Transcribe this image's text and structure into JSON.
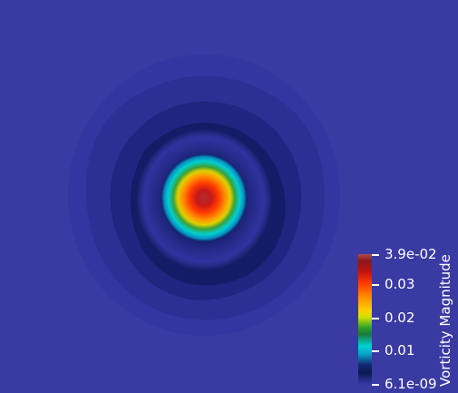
{
  "viewport": {
    "background_color": "#3a3aa3"
  },
  "colorbar": {
    "title": "Vorticity Magnitude",
    "max_label": "3.9e-02",
    "tick_003": "0.03",
    "tick_002": "0.02",
    "tick_001": "0.01",
    "min_label": "6.1e-09",
    "colormap": [
      "#b34a4a",
      "#8a1a1a",
      "#c01010",
      "#ff3a00",
      "#ff8a00",
      "#ffd000",
      "#2aa02a",
      "#00d4d4",
      "#102a70",
      "#3a3ab0"
    ]
  }
}
